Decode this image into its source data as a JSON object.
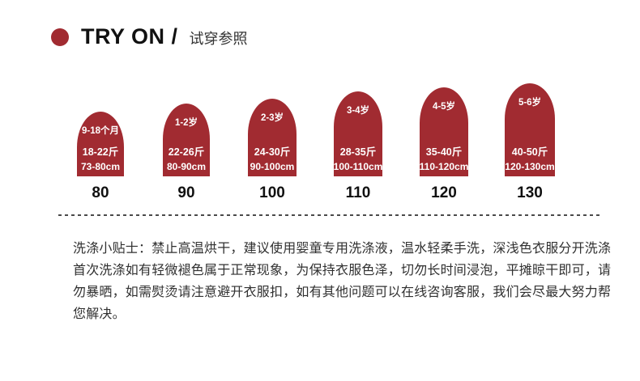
{
  "accent_color": "#A12B31",
  "header": {
    "title": "TRY ON /",
    "subtitle": "试穿参照"
  },
  "size_chart": {
    "items": [
      {
        "age": "9-18个月",
        "weight": "18-22斤",
        "height": "73-80cm",
        "size": "80",
        "arch_width": 58,
        "arch_height": 80
      },
      {
        "age": "1-2岁",
        "weight": "22-26斤",
        "height": "80-90cm",
        "size": "90",
        "arch_width": 58,
        "arch_height": 90
      },
      {
        "age": "2-3岁",
        "weight": "24-30斤",
        "height": "90-100cm",
        "size": "100",
        "arch_width": 60,
        "arch_height": 96
      },
      {
        "age": "3-4岁",
        "weight": "28-35斤",
        "height": "100-110cm",
        "size": "110",
        "arch_width": 60,
        "arch_height": 105
      },
      {
        "age": "4-5岁",
        "weight": "35-40斤",
        "height": "110-120cm",
        "size": "120",
        "arch_width": 60,
        "arch_height": 110
      },
      {
        "age": "5-6岁",
        "weight": "40-50斤",
        "height": "120-130cm",
        "size": "130",
        "arch_width": 62,
        "arch_height": 115
      }
    ]
  },
  "care_note": {
    "lines": [
      "洗涤小贴士：禁止高温烘干，建议使用婴童专用洗涤液，温水轻柔手洗，深浅色衣服分开洗涤",
      "首次洗涤如有轻微褪色属于正常现象，为保持衣服色泽，切勿长时间浸泡，平摊晾干即可，请",
      "勿暴晒，如需熨烫请注意避开衣服扣，如有其他问题可以在线咨询客服，我们会尽最大努力帮",
      "您解决。"
    ]
  }
}
